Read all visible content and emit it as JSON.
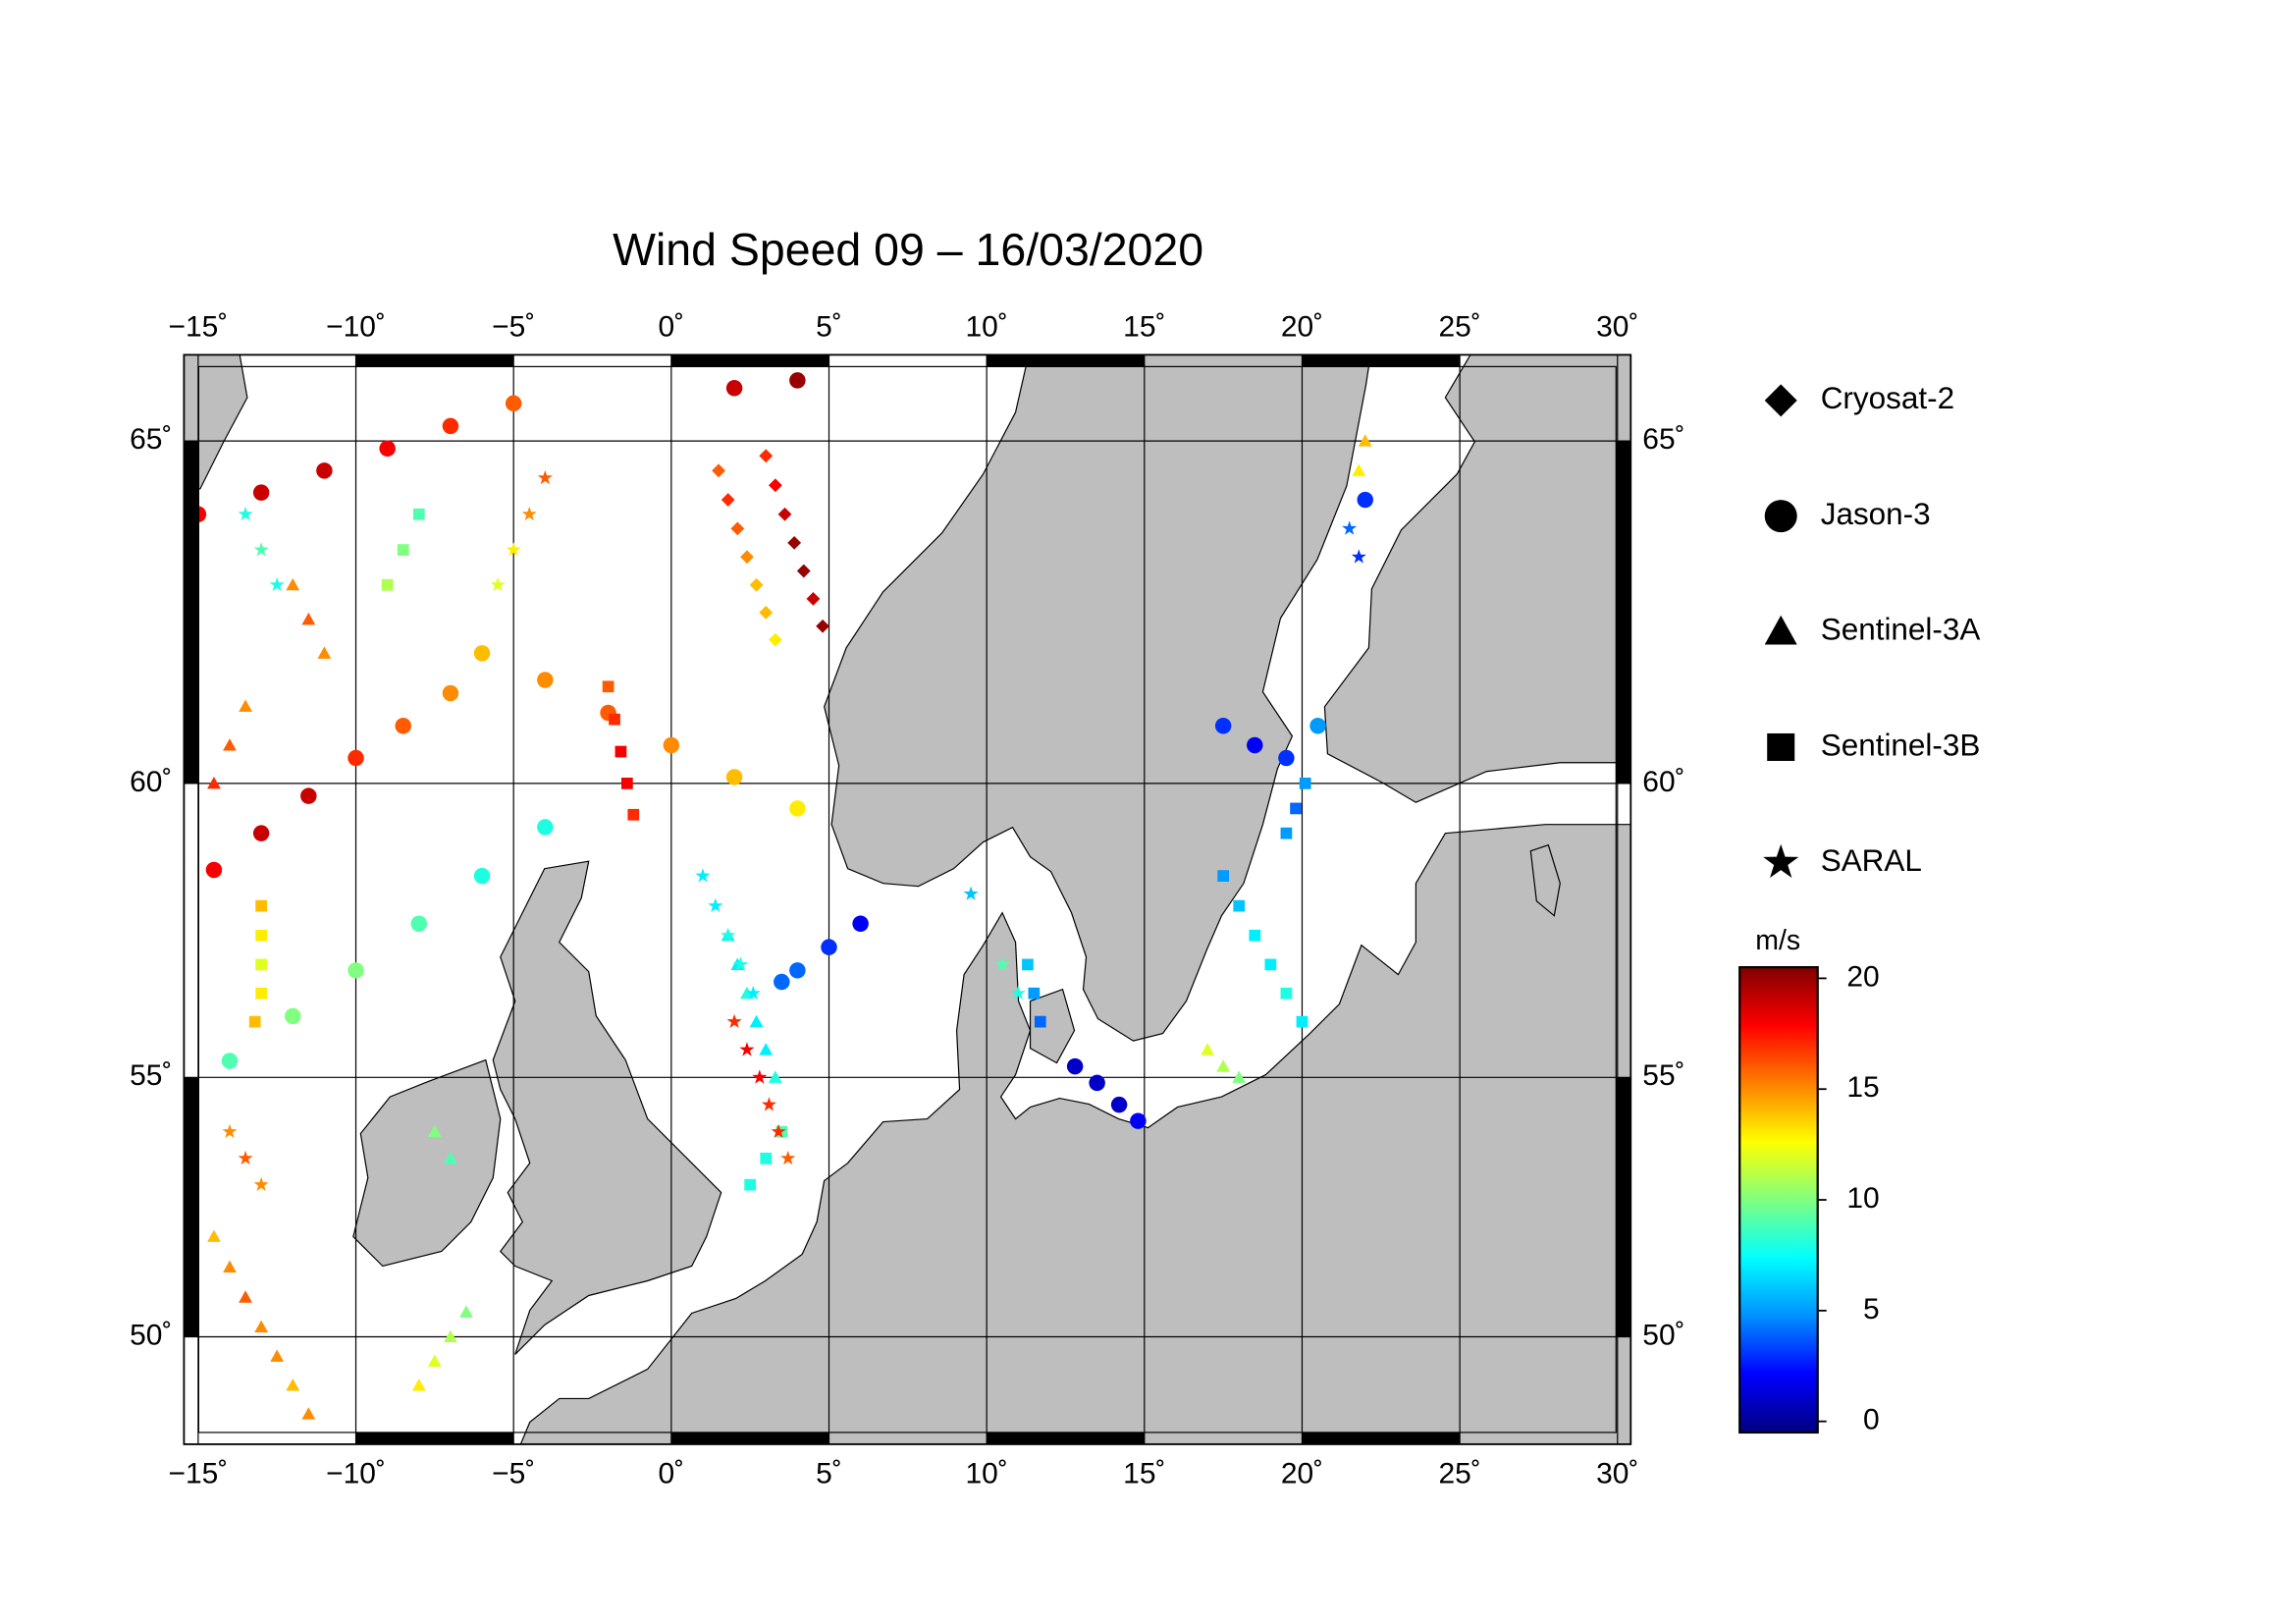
{
  "chart_data": {
    "type": "map",
    "projection": "mercator",
    "title": "Wind Speed 09 – 16/03/2020",
    "xlim": [
      -15.45,
      30.42
    ],
    "ylim": [
      47.76,
      66.13
    ],
    "xticks": [
      {
        "value": -15,
        "label": "−15˚"
      },
      {
        "value": -10,
        "label": "−10˚"
      },
      {
        "value": -5,
        "label": "−5˚"
      },
      {
        "value": 0,
        "label": "0˚"
      },
      {
        "value": 5,
        "label": "5˚"
      },
      {
        "value": 10,
        "label": "10˚"
      },
      {
        "value": 15,
        "label": "15˚"
      },
      {
        "value": 20,
        "label": "20˚"
      },
      {
        "value": 25,
        "label": "25˚"
      },
      {
        "value": 30,
        "label": "30˚"
      }
    ],
    "yticks": [
      {
        "value": 50,
        "label": "50˚"
      },
      {
        "value": 55,
        "label": "55˚"
      },
      {
        "value": 60,
        "label": "60˚"
      },
      {
        "value": 65,
        "label": "65˚"
      }
    ],
    "grid": true,
    "colorbar": {
      "label": "m/s",
      "clim": [
        -0.5,
        20.5
      ],
      "ticks": [
        0,
        5,
        10,
        15,
        20
      ],
      "colormap": [
        "#000080",
        "#0000ff",
        "#0090ff",
        "#00ffff",
        "#80ff80",
        "#ffff00",
        "#ff8000",
        "#ff0000",
        "#800000"
      ]
    },
    "series": [
      {
        "name": "Cryosat-2",
        "marker": "diamond",
        "lon": [
          3,
          3.3,
          3.6,
          3.9,
          4.2,
          4.5,
          4.8,
          1.5,
          1.8,
          2.1,
          2.4,
          2.7,
          3,
          3.3
        ],
        "lat": [
          64.8,
          64.4,
          64,
          63.6,
          63.2,
          62.8,
          62.4,
          64.6,
          64.2,
          63.8,
          63.4,
          63,
          62.6,
          62.2
        ],
        "values": [
          17,
          18,
          19,
          20,
          20,
          19,
          20,
          16,
          17,
          16,
          15,
          14,
          14,
          13
        ]
      },
      {
        "name": "Jason-3",
        "marker": "circle",
        "lon": [
          -14.5,
          -13,
          -11.5,
          -10,
          -8.5,
          -7,
          -15,
          -13,
          -11,
          -9,
          -7,
          -5,
          -6,
          -4,
          -2,
          0,
          2,
          4,
          -14,
          -12,
          -10,
          -8,
          -6,
          -4,
          6,
          5,
          4,
          3.5,
          12.8,
          13.5,
          14.2,
          14.8,
          17.5,
          18.5,
          19.5,
          20.5,
          22,
          2,
          4
        ],
        "lat": [
          58.6,
          59.2,
          59.8,
          60.4,
          60.9,
          61.4,
          64,
          64.3,
          64.6,
          64.9,
          65.2,
          65.5,
          62,
          61.6,
          61.1,
          60.6,
          60.1,
          59.6,
          55.3,
          56.1,
          56.9,
          57.7,
          58.5,
          59.3,
          57.7,
          57.3,
          56.9,
          56.7,
          55.2,
          54.9,
          54.5,
          54.2,
          60.9,
          60.6,
          60.4,
          60.9,
          64.2,
          65.7,
          65.8
        ],
        "values": [
          18,
          19,
          19,
          17,
          16,
          15,
          18,
          19,
          19,
          18,
          17,
          16,
          14,
          15,
          16,
          15,
          14,
          13,
          9,
          10,
          10,
          9,
          8,
          8,
          2,
          3,
          4,
          4,
          1,
          1,
          1,
          2,
          3,
          2,
          3,
          5,
          3,
          19,
          20
        ]
      },
      {
        "name": "Sentinel-3A",
        "marker": "triangle",
        "lon": [
          -14.5,
          -14,
          -13.5,
          -13,
          -12.5,
          -12,
          -11.5,
          -14.5,
          -14,
          -13.5,
          1.8,
          2.1,
          2.4,
          2.7,
          3,
          3.3,
          -8,
          -7.5,
          -7,
          -6.5,
          -7,
          -7.5,
          17,
          17.5,
          18,
          22,
          21.8,
          -12,
          -11.5,
          -11
        ],
        "lat": [
          52,
          51.4,
          50.8,
          50.2,
          49.6,
          49,
          48.4,
          60,
          60.6,
          61.2,
          57.5,
          57,
          56.5,
          56,
          55.5,
          55,
          49,
          49.5,
          50,
          50.5,
          53.5,
          54,
          55.5,
          55.2,
          55,
          65,
          64.6,
          63,
          62.5,
          62
        ],
        "values": [
          14,
          15,
          16,
          15,
          15,
          14,
          15,
          17,
          16,
          15,
          7,
          7,
          8,
          7,
          7,
          8,
          13,
          12,
          11,
          10,
          9,
          10,
          12,
          11,
          10,
          14,
          13,
          15,
          16,
          15
        ]
      },
      {
        "name": "Sentinel-3B",
        "marker": "square",
        "lon": [
          -2,
          -1.8,
          -1.6,
          -1.4,
          -1.2,
          17.5,
          18,
          18.5,
          19,
          19.5,
          20,
          19.5,
          19.8,
          20.1,
          -13,
          -13,
          -13,
          -13,
          -13.2,
          11.3,
          11.5,
          11.7,
          3.5,
          3,
          2.5,
          -9,
          -8.5,
          -8
        ],
        "lat": [
          61.5,
          61,
          60.5,
          60,
          59.5,
          58.5,
          58,
          57.5,
          57,
          56.5,
          56,
          59.2,
          59.6,
          60,
          58,
          57.5,
          57,
          56.5,
          56,
          57,
          56.5,
          56,
          54,
          53.5,
          53,
          63,
          63.5,
          64
        ],
        "values": [
          16,
          17,
          18,
          18,
          17,
          5,
          6,
          7,
          7,
          8,
          7,
          5,
          4,
          5,
          14,
          13,
          12,
          13,
          14,
          6,
          5,
          4,
          9,
          8,
          8,
          11,
          10,
          9
        ]
      },
      {
        "name": "SARAL",
        "marker": "star",
        "lon": [
          2,
          2.4,
          2.8,
          3.1,
          3.4,
          3.7,
          1,
          1.4,
          1.8,
          2.2,
          2.6,
          -13.5,
          -13,
          -12.5,
          21.5,
          21.8,
          -5.5,
          -5,
          -4.5,
          -4,
          -14,
          -13.5,
          -13,
          10.5,
          11,
          9.5
        ],
        "lat": [
          56,
          55.5,
          55,
          54.5,
          54,
          53.5,
          58.5,
          58,
          57.5,
          57,
          56.5,
          64,
          63.5,
          63,
          63.8,
          63.4,
          63,
          63.5,
          64,
          64.5,
          54,
          53.5,
          53,
          57,
          56.5,
          58.2
        ],
        "values": [
          17,
          18,
          18,
          17,
          17,
          16,
          7,
          7,
          8,
          8,
          7,
          8,
          9,
          8,
          4,
          3,
          12,
          13,
          15,
          16,
          15,
          16,
          15,
          9,
          8,
          6
        ]
      }
    ]
  }
}
